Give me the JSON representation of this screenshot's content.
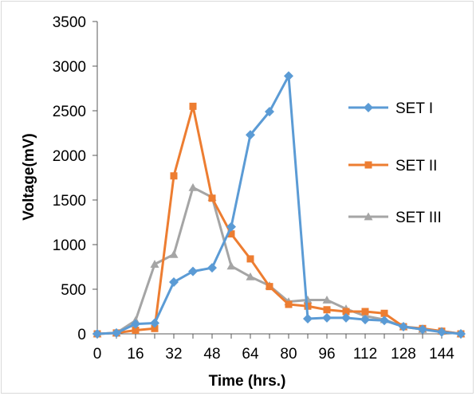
{
  "chart_data": {
    "type": "line",
    "xlabel": "Time (hrs.)",
    "ylabel": "Voltage(mV)",
    "ylim": [
      0,
      3500
    ],
    "yticks": [
      0,
      500,
      1000,
      1500,
      2000,
      2500,
      3000,
      3500
    ],
    "xlim": [
      0,
      152
    ],
    "xticks": [
      0,
      16,
      32,
      48,
      64,
      80,
      96,
      112,
      128,
      144
    ],
    "grid": false,
    "legend_position": "right",
    "x": [
      0,
      8,
      16,
      24,
      32,
      40,
      48,
      56,
      64,
      72,
      80,
      88,
      96,
      104,
      112,
      120,
      128,
      136,
      144,
      152
    ],
    "series": [
      {
        "name": "SET I",
        "color": "#5b9bd5",
        "marker": "diamond",
        "values": [
          0,
          10,
          110,
          120,
          580,
          700,
          740,
          1200,
          2230,
          2490,
          2890,
          170,
          180,
          180,
          160,
          150,
          80,
          50,
          20,
          0
        ]
      },
      {
        "name": "SET II",
        "color": "#ed7d31",
        "marker": "square",
        "values": [
          0,
          10,
          40,
          60,
          1770,
          2550,
          1520,
          1120,
          840,
          530,
          330,
          310,
          270,
          250,
          250,
          230,
          80,
          60,
          30,
          0
        ]
      },
      {
        "name": "SET III",
        "color": "#a5a5a5",
        "marker": "triangle",
        "values": [
          0,
          10,
          150,
          780,
          890,
          1640,
          1530,
          760,
          640,
          540,
          360,
          380,
          380,
          280,
          200,
          160,
          80,
          50,
          30,
          0
        ]
      }
    ]
  }
}
